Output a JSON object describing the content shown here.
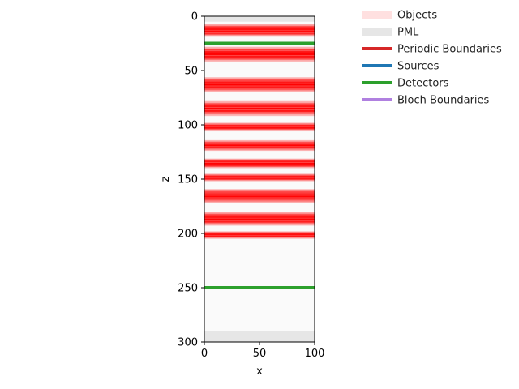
{
  "chart_data": {
    "type": "area",
    "title": "",
    "xlabel": "x",
    "ylabel": "z",
    "xlim": [
      0,
      100
    ],
    "ylim": [
      0,
      300
    ],
    "y_inverted": true,
    "grid": false,
    "xticks": [
      "0",
      "50",
      "100"
    ],
    "yticks": [
      "0",
      "50",
      "100",
      "150",
      "200",
      "250",
      "300"
    ],
    "pml_regions": [
      {
        "z_start": 0,
        "z_end": 5
      },
      {
        "z_start": 290,
        "z_end": 300
      }
    ],
    "object_layers_z": [
      [
        7,
        19
      ],
      [
        28,
        42
      ],
      [
        56,
        70
      ],
      [
        78,
        92
      ],
      [
        98,
        106
      ],
      [
        114,
        124
      ],
      [
        131,
        140
      ],
      [
        145,
        152
      ],
      [
        159,
        172
      ],
      [
        180,
        193
      ],
      [
        198,
        205
      ]
    ],
    "detectors_z": [
      25,
      250
    ],
    "legend": {
      "placement": "upper-right-outside",
      "entries": [
        {
          "label": "Objects",
          "color": "#ffe0e0",
          "style": "patch"
        },
        {
          "label": "PML",
          "color": "#e6e6e6",
          "style": "patch"
        },
        {
          "label": "Periodic Boundaries",
          "color": "#d62728",
          "style": "line"
        },
        {
          "label": "Sources",
          "color": "#1f77b4",
          "style": "line"
        },
        {
          "label": "Detectors",
          "color": "#2ca02c",
          "style": "line"
        },
        {
          "label": "Bloch Boundaries",
          "color": "#b080e0",
          "style": "line"
        }
      ]
    },
    "colors": {
      "object_fill": "#ff0000",
      "background": "#fafafa",
      "pml": "#e6e6e6",
      "detector": "#2ca02c"
    }
  }
}
